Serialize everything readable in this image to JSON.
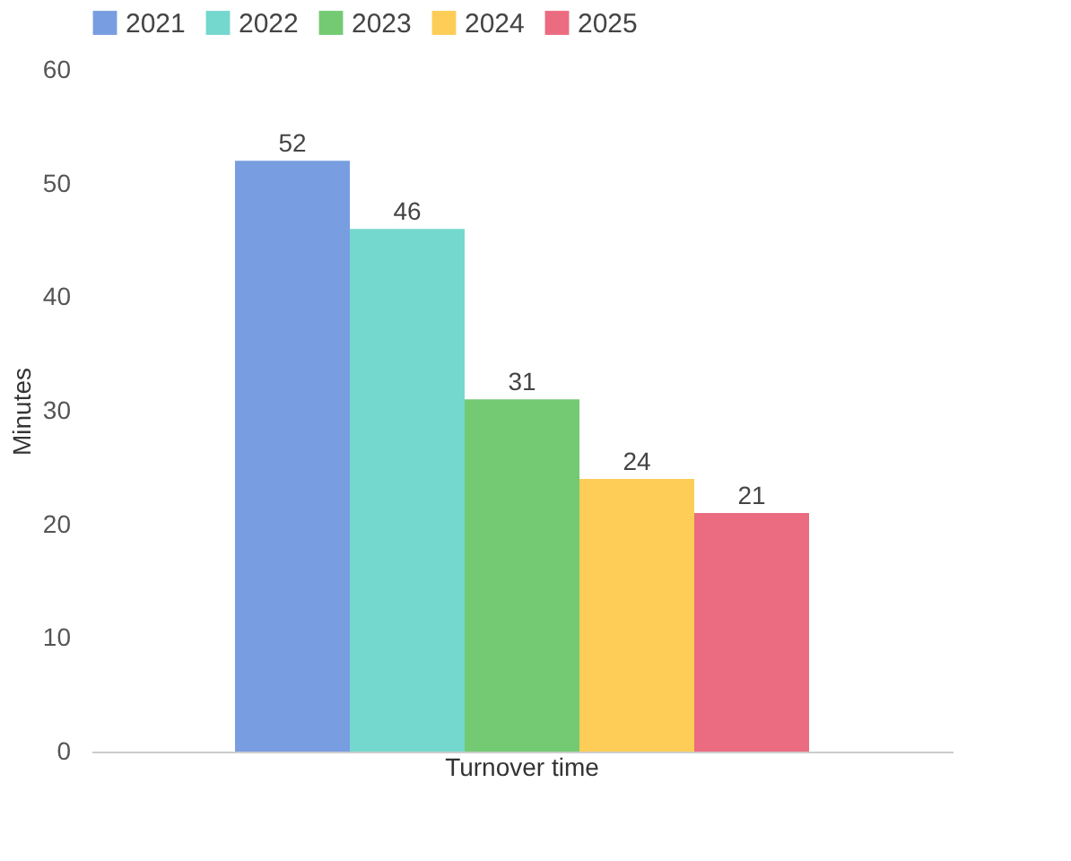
{
  "chart_data": {
    "type": "bar",
    "ylabel": "Minutes",
    "categories": [
      "Turnover time"
    ],
    "series": [
      {
        "name": "2021",
        "color": "#7198de",
        "values": [
          52
        ]
      },
      {
        "name": "2022",
        "color": "#6dd6cc",
        "values": [
          46
        ]
      },
      {
        "name": "2023",
        "color": "#6cc76b",
        "values": [
          31
        ]
      },
      {
        "name": "2024",
        "color": "#fdca4e",
        "values": [
          24
        ]
      },
      {
        "name": "2025",
        "color": "#ea637a",
        "values": [
          21
        ]
      }
    ],
    "ylim": [
      0,
      60
    ],
    "yticks": [
      0,
      10,
      20,
      30,
      40,
      50,
      60
    ],
    "grid": false,
    "legend": "top",
    "data_labels": true
  }
}
